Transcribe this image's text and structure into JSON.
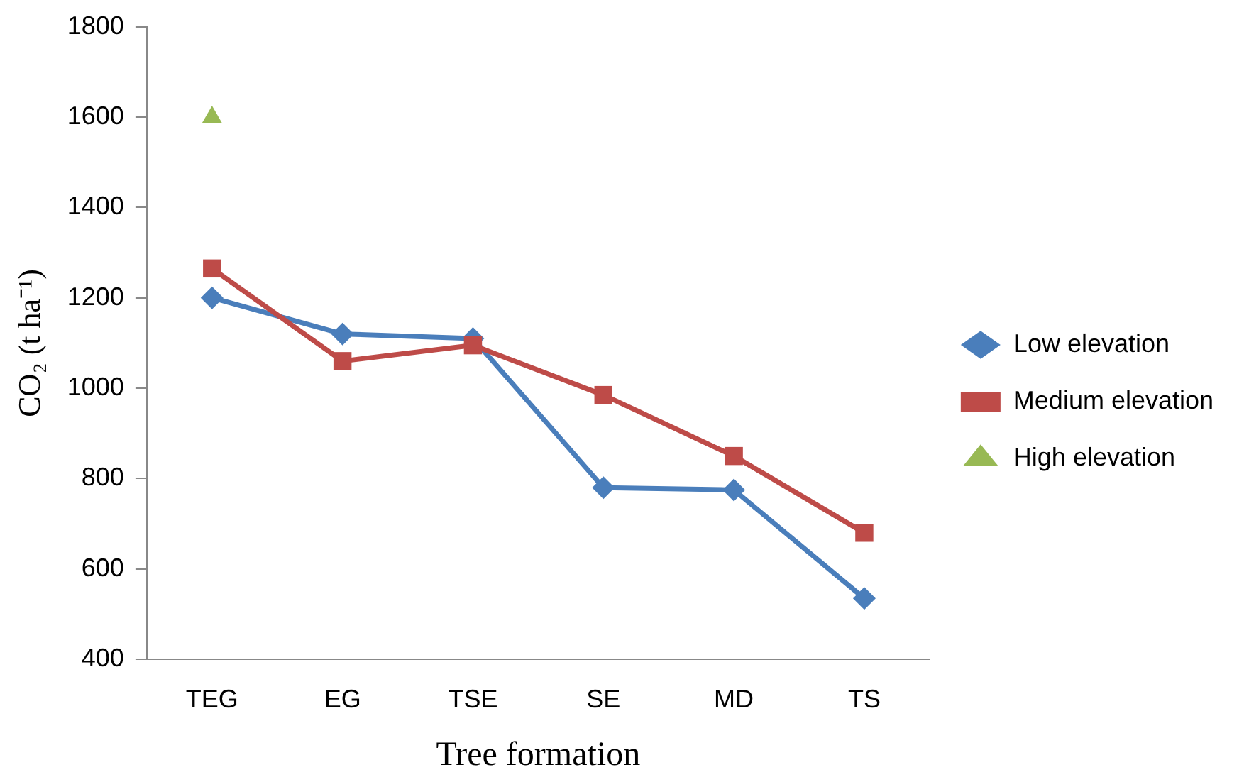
{
  "chart_data": {
    "type": "line",
    "xlabel": "Tree formation",
    "ylabel": "CO₂ (t ha⁻¹)",
    "categories": [
      "TEG",
      "EG",
      "TSE",
      "SE",
      "MD",
      "TS"
    ],
    "ylim": [
      400,
      1800
    ],
    "yticks": [
      400,
      600,
      800,
      1000,
      1200,
      1400,
      1600,
      1800
    ],
    "grid": false,
    "legend": "right",
    "series": [
      {
        "name": "Low elevation",
        "color": "#4a7ebb",
        "marker": "diamond",
        "values": [
          1200,
          1120,
          1110,
          780,
          775,
          535
        ]
      },
      {
        "name": "Medium elevation",
        "color": "#be4b48",
        "marker": "square",
        "values": [
          1265,
          1060,
          1095,
          985,
          850,
          680
        ]
      },
      {
        "name": "High elevation",
        "color": "#98b954",
        "marker": "triangle",
        "values": [
          1600,
          null,
          null,
          null,
          null,
          null
        ]
      }
    ]
  }
}
